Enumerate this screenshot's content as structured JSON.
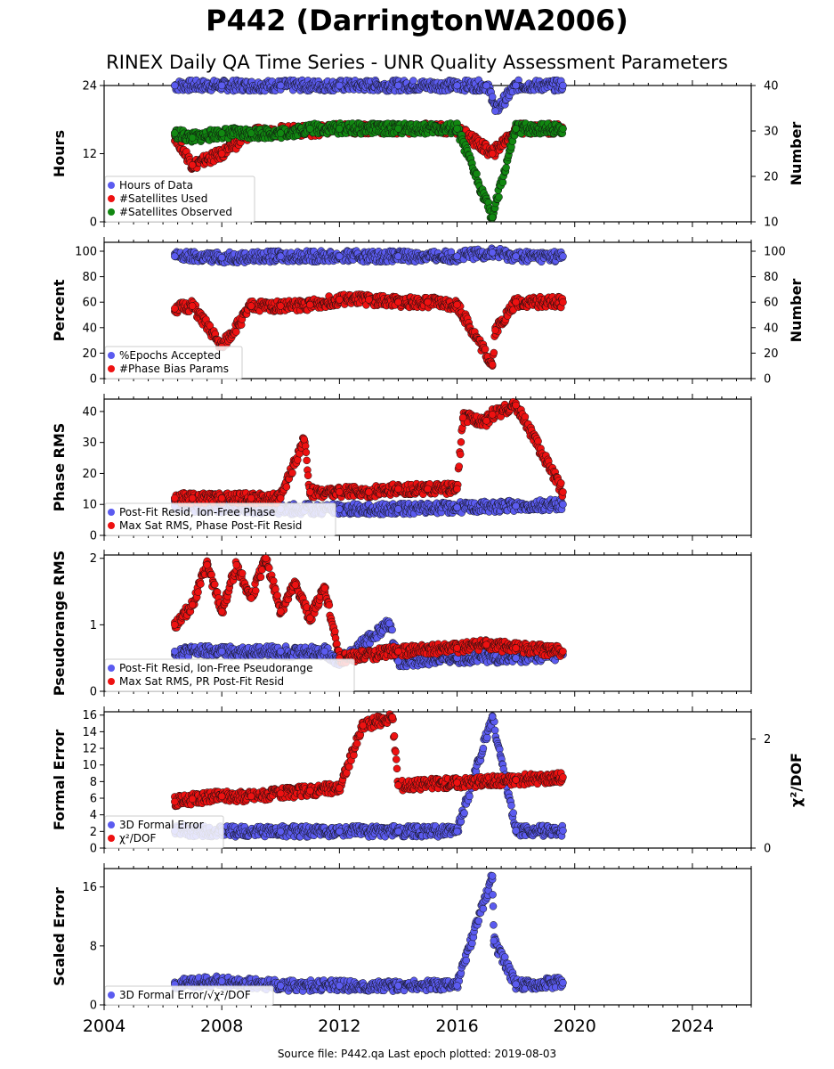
{
  "page": {
    "title": "P442 (DarringtonWA2006)",
    "subtitle": "RINEX Daily QA Time Series - UNR Quality Assessment Parameters",
    "footer": "Source file: P442.qa Last epoch plotted: 2019-08-03"
  },
  "colors": {
    "blue": "#5b5bf0",
    "red": "#ee1111",
    "green": "#118811",
    "edge": "#101010"
  },
  "chart_data": [
    {
      "type": "scatter",
      "ylabel": "Hours",
      "y2label": "Number",
      "xlim": [
        2004,
        2026
      ],
      "ylim": [
        0,
        24
      ],
      "y2lim": [
        10,
        40
      ],
      "yticks": [
        0,
        12,
        24
      ],
      "y2ticks": [
        10,
        20,
        30,
        40
      ],
      "legend": [
        "Hours of Data",
        "#Satellites Used",
        "#Satellites Observed"
      ],
      "series": [
        {
          "name": "Hours of Data",
          "color": "blue",
          "axis": "left",
          "x": [
            2006.4,
            2008.0,
            2010.0,
            2012.0,
            2014.0,
            2016.0,
            2017.0,
            2017.2,
            2017.3,
            2018.0,
            2019.6
          ],
          "y": [
            24.0,
            24.0,
            24.0,
            24.0,
            24.0,
            24.0,
            24.0,
            22.0,
            19.5,
            24.0,
            24.0
          ]
        },
        {
          "name": "#Satellites Used",
          "color": "red",
          "axis": "right",
          "x": [
            2006.4,
            2007.0,
            2008.0,
            2009.0,
            2010.0,
            2011.0,
            2012.0,
            2014.0,
            2016.0,
            2017.2,
            2018.0,
            2019.6
          ],
          "y": [
            29.0,
            22.5,
            25.0,
            29.5,
            30.0,
            30.0,
            30.5,
            30.5,
            30.5,
            25.0,
            30.5,
            30.5
          ]
        },
        {
          "name": "#Satellites Observed",
          "color": "green",
          "axis": "right",
          "x": [
            2006.4,
            2007.0,
            2008.0,
            2009.0,
            2010.0,
            2011.0,
            2012.0,
            2014.0,
            2016.0,
            2017.2,
            2018.0,
            2019.6
          ],
          "y": [
            29.5,
            28.5,
            29.5,
            29.5,
            29.5,
            30.5,
            30.5,
            30.5,
            30.5,
            11.0,
            30.5,
            30.5
          ]
        }
      ]
    },
    {
      "type": "scatter",
      "ylabel": "Percent",
      "y2label": "Number",
      "xlim": [
        2004,
        2026
      ],
      "ylim": [
        0,
        107
      ],
      "y2lim": [
        0,
        107
      ],
      "yticks": [
        0,
        20,
        40,
        60,
        80,
        100
      ],
      "y2ticks": [
        0,
        20,
        40,
        60,
        80,
        100
      ],
      "legend": [
        "%Epochs Accepted",
        "#Phase Bias Params"
      ],
      "series": [
        {
          "name": "%Epochs Accepted",
          "color": "blue",
          "axis": "left",
          "x": [
            2006.4,
            2008.0,
            2010.0,
            2012.0,
            2014.0,
            2016.0,
            2017.2,
            2018.0,
            2019.6
          ],
          "y": [
            96,
            95,
            96,
            96,
            96,
            96,
            99,
            96,
            96
          ]
        },
        {
          "name": "#Phase Bias Params",
          "color": "red",
          "axis": "right",
          "x": [
            2006.4,
            2007.0,
            2008.0,
            2009.0,
            2010.0,
            2011.0,
            2012.0,
            2013.0,
            2014.0,
            2015.0,
            2016.0,
            2017.2,
            2017.3,
            2018.0,
            2019.6
          ],
          "y": [
            55,
            57,
            25,
            57,
            57,
            58,
            62,
            62,
            60,
            60,
            58,
            11,
            38,
            60,
            60
          ]
        }
      ]
    },
    {
      "type": "scatter",
      "ylabel": "Phase RMS",
      "xlim": [
        2004,
        2026
      ],
      "ylim": [
        0,
        44
      ],
      "yticks": [
        0,
        10,
        20,
        30,
        40
      ],
      "legend": [
        "Post-Fit Resid, Ion-Free Phase",
        "Max Sat RMS, Phase Post-Fit Resid"
      ],
      "series": [
        {
          "name": "Post-Fit Resid, Ion-Free Phase",
          "color": "blue",
          "x": [
            2006.4,
            2008.0,
            2010.0,
            2012.0,
            2014.0,
            2016.0,
            2018.0,
            2019.6
          ],
          "y": [
            9.5,
            9.0,
            8.5,
            8.5,
            8.5,
            9.0,
            9.5,
            10.0
          ]
        },
        {
          "name": "Max Sat RMS, Phase Post-Fit Resid",
          "color": "red",
          "x": [
            2006.4,
            2007.0,
            2008.0,
            2009.0,
            2010.0,
            2010.8,
            2011.0,
            2012.0,
            2013.0,
            2014.0,
            2015.0,
            2016.0,
            2016.2,
            2017.0,
            2017.2,
            2018.0,
            2019.6
          ],
          "y": [
            12,
            12,
            12,
            12,
            12,
            31,
            14,
            14,
            14,
            15,
            15,
            15,
            38,
            37,
            39,
            42,
            14
          ]
        }
      ]
    },
    {
      "type": "scatter",
      "ylabel": "Pseudorange RMS",
      "xlim": [
        2004,
        2026
      ],
      "ylim": [
        0,
        2.05
      ],
      "yticks": [
        0,
        1,
        2
      ],
      "legend": [
        "Post-Fit Resid, Ion-Free Pseudorange",
        "Max Sat RMS, PR Post-Fit Resid"
      ],
      "series": [
        {
          "name": "Post-Fit Resid, Ion-Free Pseudorange",
          "color": "blue",
          "x": [
            2006.4,
            2008.0,
            2010.0,
            2011.5,
            2012.0,
            2013.7,
            2014.0,
            2016.0,
            2018.0,
            2019.6
          ],
          "y": [
            0.6,
            0.6,
            0.6,
            0.6,
            0.45,
            1.02,
            0.45,
            0.5,
            0.5,
            0.55
          ]
        },
        {
          "name": "Max Sat RMS, PR Post-Fit Resid",
          "color": "red",
          "x": [
            2006.4,
            2007.0,
            2007.5,
            2008.0,
            2008.5,
            2009.0,
            2009.5,
            2010.0,
            2010.5,
            2011.0,
            2011.5,
            2012.0,
            2014.0,
            2016.0,
            2017.0,
            2018.0,
            2019.6
          ],
          "y": [
            1.0,
            1.3,
            1.9,
            1.2,
            1.9,
            1.4,
            2.0,
            1.2,
            1.6,
            1.1,
            1.55,
            0.5,
            0.6,
            0.65,
            0.7,
            0.65,
            0.6
          ]
        }
      ]
    },
    {
      "type": "scatter",
      "ylabel": "Formal Error",
      "y2label": "χ²/DOF",
      "xlim": [
        2004,
        2026
      ],
      "ylim": [
        0,
        16.4
      ],
      "y2lim": [
        0,
        2.5
      ],
      "yticks": [
        0,
        2,
        4,
        6,
        8,
        10,
        12,
        14,
        16
      ],
      "y2ticks": [
        0,
        2
      ],
      "legend": [
        "3D Formal Error",
        "χ²/DOF"
      ],
      "series": [
        {
          "name": "3D Formal Error",
          "color": "blue",
          "axis": "left",
          "x": [
            2006.4,
            2008.0,
            2010.0,
            2012.0,
            2014.0,
            2016.0,
            2017.2,
            2018.0,
            2019.6
          ],
          "y": [
            2.1,
            2.0,
            2.0,
            2.0,
            2.0,
            2.0,
            15.8,
            2.1,
            2.1
          ]
        },
        {
          "name": "χ²/DOF",
          "color": "red",
          "axis": "right",
          "x": [
            2006.4,
            2007.0,
            2008.0,
            2009.0,
            2010.0,
            2011.0,
            2012.0,
            2012.8,
            2013.8,
            2014.0,
            2016.0,
            2018.0,
            2019.6
          ],
          "y": [
            0.85,
            0.9,
            0.95,
            0.95,
            1.0,
            1.05,
            1.1,
            2.25,
            2.4,
            1.15,
            1.2,
            1.25,
            1.3
          ]
        }
      ]
    },
    {
      "type": "scatter",
      "ylabel": "Scaled Error",
      "xlim": [
        2004,
        2026
      ],
      "ylim": [
        0,
        18.5
      ],
      "yticks": [
        0,
        8,
        16
      ],
      "xticks": [
        2004,
        2008,
        2012,
        2016,
        2020,
        2024
      ],
      "legend": [
        "3D Formal Error/√χ²/DOF"
      ],
      "series": [
        {
          "name": "3D Formal Error/√χ²/DOF",
          "color": "blue",
          "x": [
            2006.4,
            2008.0,
            2010.0,
            2012.0,
            2014.0,
            2016.0,
            2017.2,
            2017.25,
            2018.0,
            2019.6
          ],
          "y": [
            2.8,
            3.2,
            2.6,
            2.6,
            2.6,
            2.6,
            17.5,
            8.7,
            2.8,
            3.0
          ]
        }
      ]
    }
  ]
}
